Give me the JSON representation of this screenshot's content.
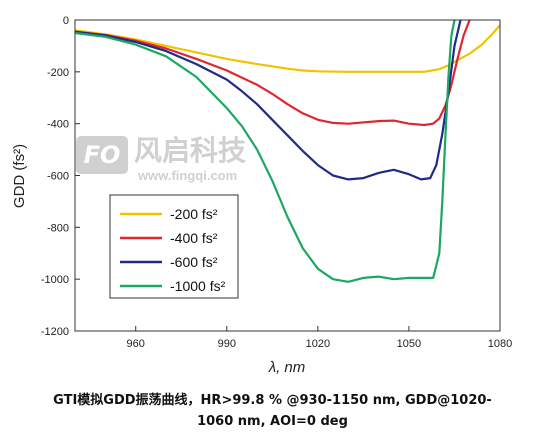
{
  "chart_data": {
    "type": "line",
    "xlabel": "λ, nm",
    "ylabel": "GDD (fs²)",
    "xlim": [
      940,
      1080
    ],
    "ylim": [
      -1200,
      0
    ],
    "xticks": [
      960,
      990,
      1020,
      1050,
      1080
    ],
    "yticks": [
      0,
      -200,
      -400,
      -600,
      -800,
      -1000,
      -1200
    ],
    "legend": "lower-left inside",
    "grid": false,
    "series": [
      {
        "name": "-200 fs²",
        "color": "#f2c200",
        "x": [
          940,
          950,
          960,
          970,
          980,
          990,
          1000,
          1010,
          1015,
          1020,
          1030,
          1040,
          1050,
          1055,
          1060,
          1063,
          1066,
          1070,
          1074,
          1077,
          1080
        ],
        "y": [
          -40,
          -55,
          -75,
          -100,
          -125,
          -150,
          -170,
          -188,
          -195,
          -198,
          -200,
          -200,
          -200,
          -200,
          -190,
          -175,
          -155,
          -130,
          -95,
          -60,
          -20
        ]
      },
      {
        "name": "-400 fs²",
        "color": "#e0262e",
        "x": [
          940,
          950,
          960,
          970,
          980,
          990,
          1000,
          1005,
          1010,
          1015,
          1020,
          1025,
          1030,
          1040,
          1045,
          1050,
          1055,
          1058,
          1060,
          1062,
          1064,
          1066,
          1068,
          1070
        ],
        "y": [
          -45,
          -58,
          -80,
          -110,
          -150,
          -195,
          -250,
          -285,
          -325,
          -360,
          -385,
          -397,
          -400,
          -390,
          -388,
          -400,
          -405,
          -400,
          -380,
          -330,
          -250,
          -150,
          -60,
          0
        ]
      },
      {
        "name": "-600 fs²",
        "color": "#1f2a8a",
        "x": [
          940,
          950,
          960,
          970,
          980,
          990,
          995,
          1000,
          1005,
          1010,
          1015,
          1020,
          1025,
          1030,
          1035,
          1040,
          1045,
          1050,
          1054,
          1057,
          1059,
          1061,
          1063,
          1065,
          1067
        ],
        "y": [
          -45,
          -60,
          -85,
          -120,
          -170,
          -230,
          -275,
          -325,
          -385,
          -445,
          -505,
          -560,
          -600,
          -615,
          -610,
          -590,
          -578,
          -595,
          -615,
          -610,
          -560,
          -440,
          -280,
          -100,
          0
        ]
      },
      {
        "name": "-1000 fs²",
        "color": "#1aa862",
        "x": [
          940,
          950,
          960,
          970,
          980,
          990,
          995,
          1000,
          1005,
          1010,
          1015,
          1020,
          1025,
          1030,
          1035,
          1040,
          1045,
          1050,
          1055,
          1058,
          1060,
          1061,
          1062,
          1063,
          1064,
          1065
        ],
        "y": [
          -50,
          -65,
          -95,
          -140,
          -220,
          -340,
          -410,
          -500,
          -620,
          -760,
          -880,
          -960,
          -1000,
          -1010,
          -995,
          -990,
          -1000,
          -995,
          -995,
          -995,
          -900,
          -700,
          -450,
          -220,
          -60,
          0
        ]
      }
    ]
  },
  "watermark": {
    "badge": "FO",
    "main": "风启科技",
    "sub": "www.fingqi.com"
  },
  "caption": {
    "line1": "GTI模拟GDD振荡曲线，HR>99.8 % @930-1150 nm, GDD@1020-",
    "line2": "1060 nm, AOI=0 deg"
  }
}
